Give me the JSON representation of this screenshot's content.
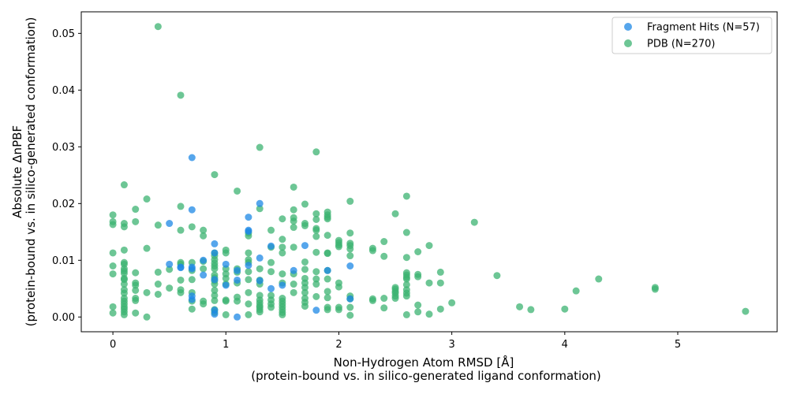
{
  "chart_data": {
    "type": "scatter",
    "title": "",
    "xlabel_lines": [
      "Non-Hydrogen Atom RMSD [Å]",
      "(protein-bound vs. in silico-generated ligand conformation)"
    ],
    "ylabel_lines": [
      "Absolute ΔnPBF",
      "(protein-bound vs. in silico-generated conformation)"
    ],
    "xlim": [
      -0.28,
      5.88
    ],
    "ylim": [
      -0.0026,
      0.0538
    ],
    "xticks": [
      0,
      1,
      2,
      3,
      4,
      5
    ],
    "xtick_labels": [
      "0",
      "1",
      "2",
      "3",
      "4",
      "5"
    ],
    "yticks": [
      0.0,
      0.01,
      0.02,
      0.03,
      0.04,
      0.05
    ],
    "ytick_labels": [
      "0.00",
      "0.01",
      "0.02",
      "0.03",
      "0.04",
      "0.05"
    ],
    "grid": false,
    "legend_position": "top-right",
    "series": [
      {
        "name": "PDB (N=270)",
        "color": "#3cb371",
        "points": [
          [
            0.0,
            0.018
          ],
          [
            0.0,
            0.0168
          ],
          [
            0.0,
            0.0163
          ],
          [
            0.0,
            0.0113
          ],
          [
            0.0,
            0.009
          ],
          [
            0.0,
            0.0076
          ],
          [
            0.0,
            0.0018
          ],
          [
            0.0,
            0.0007
          ],
          [
            0.1,
            0.0233
          ],
          [
            0.1,
            0.0165
          ],
          [
            0.1,
            0.0159
          ],
          [
            0.1,
            0.0118
          ],
          [
            0.1,
            0.0096
          ],
          [
            0.1,
            0.0093
          ],
          [
            0.1,
            0.0085
          ],
          [
            0.1,
            0.0081
          ],
          [
            0.1,
            0.0077
          ],
          [
            0.1,
            0.0068
          ],
          [
            0.1,
            0.0066
          ],
          [
            0.1,
            0.0058
          ],
          [
            0.1,
            0.0048
          ],
          [
            0.1,
            0.0042
          ],
          [
            0.1,
            0.0033
          ],
          [
            0.1,
            0.0028
          ],
          [
            0.1,
            0.0023
          ],
          [
            0.1,
            0.0018
          ],
          [
            0.1,
            0.0014
          ],
          [
            0.1,
            0.0009
          ],
          [
            0.1,
            0.0004
          ],
          [
            0.2,
            0.019
          ],
          [
            0.2,
            0.0168
          ],
          [
            0.2,
            0.0078
          ],
          [
            0.2,
            0.006
          ],
          [
            0.2,
            0.0056
          ],
          [
            0.2,
            0.0047
          ],
          [
            0.2,
            0.0033
          ],
          [
            0.2,
            0.0029
          ],
          [
            0.2,
            0.0007
          ],
          [
            0.3,
            0.0208
          ],
          [
            0.3,
            0.0121
          ],
          [
            0.3,
            0.0043
          ],
          [
            0.3,
            0.0
          ],
          [
            0.4,
            0.0512
          ],
          [
            0.4,
            0.0162
          ],
          [
            0.4,
            0.0079
          ],
          [
            0.4,
            0.0058
          ],
          [
            0.4,
            0.004
          ],
          [
            0.5,
            0.0084
          ],
          [
            0.5,
            0.0051
          ],
          [
            0.6,
            0.0391
          ],
          [
            0.6,
            0.0195
          ],
          [
            0.6,
            0.0153
          ],
          [
            0.6,
            0.0096
          ],
          [
            0.6,
            0.0093
          ],
          [
            0.6,
            0.0065
          ],
          [
            0.6,
            0.0048
          ],
          [
            0.6,
            0.0043
          ],
          [
            0.7,
            0.0159
          ],
          [
            0.7,
            0.0096
          ],
          [
            0.7,
            0.0082
          ],
          [
            0.7,
            0.0066
          ],
          [
            0.7,
            0.0043
          ],
          [
            0.7,
            0.0028
          ],
          [
            0.7,
            0.0014
          ],
          [
            0.8,
            0.0153
          ],
          [
            0.8,
            0.0143
          ],
          [
            0.8,
            0.0098
          ],
          [
            0.8,
            0.0085
          ],
          [
            0.8,
            0.0028
          ],
          [
            0.8,
            0.0023
          ],
          [
            0.9,
            0.0251
          ],
          [
            0.9,
            0.0113
          ],
          [
            0.9,
            0.0108
          ],
          [
            0.9,
            0.0101
          ],
          [
            0.9,
            0.0095
          ],
          [
            0.9,
            0.009
          ],
          [
            0.9,
            0.0085
          ],
          [
            0.9,
            0.0074
          ],
          [
            0.9,
            0.0069
          ],
          [
            0.9,
            0.0064
          ],
          [
            0.9,
            0.0058
          ],
          [
            0.9,
            0.0047
          ],
          [
            0.9,
            0.0038
          ],
          [
            0.9,
            0.0029
          ],
          [
            0.9,
            0.0013
          ],
          [
            0.9,
            0.0008
          ],
          [
            1.0,
            0.0118
          ],
          [
            1.0,
            0.0113
          ],
          [
            1.0,
            0.0085
          ],
          [
            1.0,
            0.0076
          ],
          [
            1.0,
            0.0068
          ],
          [
            1.0,
            0.0058
          ],
          [
            1.0,
            0.003
          ],
          [
            1.0,
            0.0028
          ],
          [
            1.0,
            0.0004
          ],
          [
            1.1,
            0.0222
          ],
          [
            1.1,
            0.0085
          ],
          [
            1.1,
            0.0079
          ],
          [
            1.1,
            0.006
          ],
          [
            1.1,
            0.0035
          ],
          [
            1.1,
            0.0028
          ],
          [
            1.2,
            0.0148
          ],
          [
            1.2,
            0.0143
          ],
          [
            1.2,
            0.0113
          ],
          [
            1.2,
            0.0101
          ],
          [
            1.2,
            0.0096
          ],
          [
            1.2,
            0.008
          ],
          [
            1.2,
            0.0066
          ],
          [
            1.2,
            0.0043
          ],
          [
            1.2,
            0.0023
          ],
          [
            1.2,
            0.0004
          ],
          [
            1.3,
            0.0299
          ],
          [
            1.3,
            0.0191
          ],
          [
            1.3,
            0.0085
          ],
          [
            1.3,
            0.0065
          ],
          [
            1.3,
            0.0058
          ],
          [
            1.3,
            0.0038
          ],
          [
            1.3,
            0.003
          ],
          [
            1.3,
            0.0025
          ],
          [
            1.3,
            0.002
          ],
          [
            1.3,
            0.0017
          ],
          [
            1.3,
            0.0013
          ],
          [
            1.3,
            0.0009
          ],
          [
            1.4,
            0.0153
          ],
          [
            1.4,
            0.0123
          ],
          [
            1.4,
            0.0096
          ],
          [
            1.4,
            0.008
          ],
          [
            1.4,
            0.0038
          ],
          [
            1.4,
            0.003
          ],
          [
            1.4,
            0.0023
          ],
          [
            1.4,
            0.0017
          ],
          [
            1.5,
            0.0173
          ],
          [
            1.5,
            0.0137
          ],
          [
            1.5,
            0.0123
          ],
          [
            1.5,
            0.0113
          ],
          [
            1.5,
            0.0076
          ],
          [
            1.5,
            0.006
          ],
          [
            1.5,
            0.0033
          ],
          [
            1.5,
            0.0028
          ],
          [
            1.5,
            0.0023
          ],
          [
            1.5,
            0.0018
          ],
          [
            1.5,
            0.0013
          ],
          [
            1.5,
            0.0008
          ],
          [
            1.5,
            0.0004
          ],
          [
            1.6,
            0.0229
          ],
          [
            1.6,
            0.0189
          ],
          [
            1.6,
            0.0175
          ],
          [
            1.6,
            0.0169
          ],
          [
            1.6,
            0.0158
          ],
          [
            1.6,
            0.0123
          ],
          [
            1.6,
            0.0076
          ],
          [
            1.6,
            0.0058
          ],
          [
            1.6,
            0.0043
          ],
          [
            1.7,
            0.0199
          ],
          [
            1.7,
            0.0165
          ],
          [
            1.7,
            0.0161
          ],
          [
            1.7,
            0.0097
          ],
          [
            1.7,
            0.0084
          ],
          [
            1.7,
            0.0068
          ],
          [
            1.7,
            0.006
          ],
          [
            1.7,
            0.0052
          ],
          [
            1.7,
            0.0043
          ],
          [
            1.7,
            0.0033
          ],
          [
            1.7,
            0.0026
          ],
          [
            1.7,
            0.0019
          ],
          [
            1.8,
            0.0291
          ],
          [
            1.8,
            0.0182
          ],
          [
            1.8,
            0.0172
          ],
          [
            1.8,
            0.0156
          ],
          [
            1.8,
            0.0153
          ],
          [
            1.8,
            0.0142
          ],
          [
            1.8,
            0.0114
          ],
          [
            1.8,
            0.008
          ],
          [
            1.8,
            0.0067
          ],
          [
            1.8,
            0.0058
          ],
          [
            1.8,
            0.0036
          ],
          [
            1.9,
            0.0185
          ],
          [
            1.9,
            0.018
          ],
          [
            1.9,
            0.0176
          ],
          [
            1.9,
            0.0173
          ],
          [
            1.9,
            0.0144
          ],
          [
            1.9,
            0.0113
          ],
          [
            1.9,
            0.0112
          ],
          [
            1.9,
            0.0082
          ],
          [
            1.9,
            0.0067
          ],
          [
            1.9,
            0.0045
          ],
          [
            1.9,
            0.0034
          ],
          [
            1.9,
            0.0017
          ],
          [
            1.9,
            0.0013
          ],
          [
            2.0,
            0.0135
          ],
          [
            2.0,
            0.0131
          ],
          [
            2.0,
            0.0127
          ],
          [
            2.0,
            0.0124
          ],
          [
            2.0,
            0.006
          ],
          [
            2.0,
            0.0053
          ],
          [
            2.0,
            0.0017
          ],
          [
            2.0,
            0.0013
          ],
          [
            2.1,
            0.0204
          ],
          [
            2.1,
            0.0148
          ],
          [
            2.1,
            0.013
          ],
          [
            2.1,
            0.0126
          ],
          [
            2.1,
            0.012
          ],
          [
            2.1,
            0.0108
          ],
          [
            2.1,
            0.0037
          ],
          [
            2.1,
            0.0032
          ],
          [
            2.1,
            0.0017
          ],
          [
            2.1,
            0.0003
          ],
          [
            2.3,
            0.0121
          ],
          [
            2.3,
            0.0117
          ],
          [
            2.3,
            0.0032
          ],
          [
            2.3,
            0.0029
          ],
          [
            2.4,
            0.0133
          ],
          [
            2.4,
            0.0107
          ],
          [
            2.4,
            0.0033
          ],
          [
            2.4,
            0.0016
          ],
          [
            2.5,
            0.0182
          ],
          [
            2.5,
            0.0052
          ],
          [
            2.5,
            0.0049
          ],
          [
            2.5,
            0.0045
          ],
          [
            2.5,
            0.0042
          ],
          [
            2.5,
            0.0037
          ],
          [
            2.5,
            0.0033
          ],
          [
            2.6,
            0.0213
          ],
          [
            2.6,
            0.0149
          ],
          [
            2.6,
            0.0105
          ],
          [
            2.6,
            0.0078
          ],
          [
            2.6,
            0.0074
          ],
          [
            2.6,
            0.007
          ],
          [
            2.6,
            0.0067
          ],
          [
            2.6,
            0.0057
          ],
          [
            2.6,
            0.0048
          ],
          [
            2.6,
            0.0042
          ],
          [
            2.6,
            0.0037
          ],
          [
            2.6,
            0.0004
          ],
          [
            2.7,
            0.0115
          ],
          [
            2.7,
            0.0075
          ],
          [
            2.7,
            0.0071
          ],
          [
            2.7,
            0.0021
          ],
          [
            2.7,
            0.0009
          ],
          [
            2.8,
            0.0126
          ],
          [
            2.8,
            0.006
          ],
          [
            2.8,
            0.0005
          ],
          [
            2.9,
            0.0079
          ],
          [
            2.9,
            0.006
          ],
          [
            2.9,
            0.0014
          ],
          [
            3.0,
            0.0025
          ],
          [
            3.2,
            0.0167
          ],
          [
            3.4,
            0.0073
          ],
          [
            3.6,
            0.0018
          ],
          [
            3.7,
            0.0013
          ],
          [
            4.0,
            0.0014
          ],
          [
            4.1,
            0.0046
          ],
          [
            4.3,
            0.0067
          ],
          [
            4.8,
            0.0052
          ],
          [
            4.8,
            0.0049
          ],
          [
            5.6,
            0.001
          ]
        ]
      },
      {
        "name": "Fragment Hits (N=57)",
        "color": "#1e88e5",
        "points": [
          [
            0.5,
            0.0165
          ],
          [
            0.5,
            0.0093
          ],
          [
            0.6,
            0.0088
          ],
          [
            0.6,
            0.0087
          ],
          [
            0.7,
            0.0281
          ],
          [
            0.7,
            0.0189
          ],
          [
            0.7,
            0.0088
          ],
          [
            0.7,
            0.0085
          ],
          [
            0.7,
            0.0037
          ],
          [
            0.7,
            0.0031
          ],
          [
            0.8,
            0.01
          ],
          [
            0.8,
            0.0074
          ],
          [
            0.9,
            0.0129
          ],
          [
            0.9,
            0.0113
          ],
          [
            0.9,
            0.0066
          ],
          [
            0.9,
            0.0012
          ],
          [
            0.9,
            0.0005
          ],
          [
            1.0,
            0.0093
          ],
          [
            1.0,
            0.0056
          ],
          [
            1.1,
            0.0082
          ],
          [
            1.1,
            0.0065
          ],
          [
            1.1,
            0.0
          ],
          [
            1.2,
            0.0176
          ],
          [
            1.2,
            0.0153
          ],
          [
            1.2,
            0.0151
          ],
          [
            1.2,
            0.0091
          ],
          [
            1.3,
            0.02
          ],
          [
            1.3,
            0.0104
          ],
          [
            1.3,
            0.0064
          ],
          [
            1.4,
            0.0125
          ],
          [
            1.4,
            0.005
          ],
          [
            1.5,
            0.0056
          ],
          [
            1.6,
            0.0082
          ],
          [
            1.7,
            0.0126
          ],
          [
            1.8,
            0.0012
          ],
          [
            1.9,
            0.0082
          ],
          [
            2.1,
            0.009
          ],
          [
            2.1,
            0.0032
          ]
        ]
      }
    ],
    "legend": [
      {
        "label": "Fragment Hits (N=57)",
        "color": "#1e88e5"
      },
      {
        "label": "PDB (N=270)",
        "color": "#3cb371"
      }
    ]
  }
}
